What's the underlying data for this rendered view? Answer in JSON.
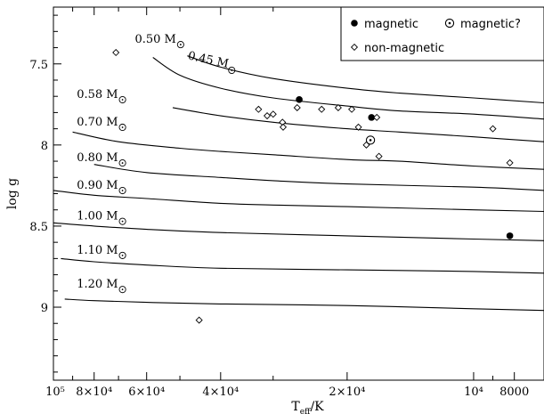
{
  "chart_data": {
    "type": "scatter",
    "xlabel": "T",
    "xlabel_sub": "eff",
    "xlabel_unit": "/K",
    "ylabel": "log g",
    "x_scale": "log",
    "x_reversed": true,
    "xlim": [
      100000,
      6800
    ],
    "ylim": [
      7.15,
      9.45
    ],
    "y_reversed": true,
    "x_ticks": [
      {
        "value": 100000,
        "label": "10⁵"
      },
      {
        "value": 80000,
        "label": "8×10⁴"
      },
      {
        "value": 60000,
        "label": "6×10⁴"
      },
      {
        "value": 40000,
        "label": "4×10⁴"
      },
      {
        "value": 20000,
        "label": "2×10⁴"
      },
      {
        "value": 10000,
        "label": "10⁴"
      },
      {
        "value": 8000,
        "label": "8000"
      }
    ],
    "x_minor_ticks": [
      90000,
      70000,
      50000,
      30000,
      9000
    ],
    "y_ticks": [
      {
        "value": 7.5,
        "label": "7.5"
      },
      {
        "value": 8,
        "label": "8"
      },
      {
        "value": 8.5,
        "label": "8.5"
      },
      {
        "value": 9,
        "label": "9"
      }
    ],
    "y_minor_step": 0.1,
    "legend": {
      "position": "top-right",
      "entries": [
        {
          "marker": "filled-circle",
          "label": "magnetic"
        },
        {
          "marker": "circle-dot",
          "label": "magnetic?"
        },
        {
          "marker": "open-diamond",
          "label": "non-magnetic"
        }
      ]
    },
    "cooling_tracks": [
      {
        "mass": "0.45 M",
        "label_text": "0.45 M",
        "label_anchor": {
          "x": 48000,
          "y": 7.47
        },
        "label_rotate": 12,
        "points": [
          [
            48000,
            7.45
          ],
          [
            40000,
            7.52
          ],
          [
            30000,
            7.59
          ],
          [
            20000,
            7.65
          ],
          [
            15000,
            7.68
          ],
          [
            10000,
            7.71
          ],
          [
            6800,
            7.74
          ]
        ]
      },
      {
        "mass": "0.50 M",
        "label_text": "0.50 M",
        "label_anchor": {
          "x": 64000,
          "y": 7.37
        },
        "points": [
          [
            58000,
            7.46
          ],
          [
            50000,
            7.57
          ],
          [
            40000,
            7.65
          ],
          [
            30000,
            7.71
          ],
          [
            20000,
            7.76
          ],
          [
            15000,
            7.79
          ],
          [
            10000,
            7.81
          ],
          [
            6800,
            7.84
          ]
        ]
      },
      {
        "mass": "0.58 M",
        "label_text": "0.58 M",
        "label_anchor": {
          "x": 88000,
          "y": 7.71
        },
        "points": [
          [
            52000,
            7.77
          ],
          [
            40000,
            7.82
          ],
          [
            30000,
            7.86
          ],
          [
            20000,
            7.9
          ],
          [
            15000,
            7.92
          ],
          [
            10000,
            7.95
          ],
          [
            6800,
            7.98
          ]
        ]
      },
      {
        "mass": "0.70 M",
        "label_text": "0.70 M",
        "label_anchor": {
          "x": 88000,
          "y": 7.88
        },
        "points": [
          [
            90000,
            7.92
          ],
          [
            70000,
            7.98
          ],
          [
            50000,
            8.02
          ],
          [
            40000,
            8.04
          ],
          [
            30000,
            8.06
          ],
          [
            20000,
            8.09
          ],
          [
            15000,
            8.1
          ],
          [
            10000,
            8.13
          ],
          [
            6800,
            8.15
          ]
        ]
      },
      {
        "mass": "0.80 M",
        "label_text": "0.80 M",
        "label_anchor": {
          "x": 88000,
          "y": 8.1
        },
        "points": [
          [
            80000,
            8.12
          ],
          [
            60000,
            8.17
          ],
          [
            40000,
            8.2
          ],
          [
            30000,
            8.22
          ],
          [
            20000,
            8.24
          ],
          [
            10000,
            8.26
          ],
          [
            6800,
            8.28
          ]
        ]
      },
      {
        "mass": "0.90 M",
        "label_text": "0.90 M",
        "label_anchor": {
          "x": 88000,
          "y": 8.27
        },
        "points": [
          [
            100000,
            8.28
          ],
          [
            80000,
            8.31
          ],
          [
            60000,
            8.33
          ],
          [
            40000,
            8.36
          ],
          [
            30000,
            8.37
          ],
          [
            20000,
            8.38
          ],
          [
            10000,
            8.4
          ],
          [
            6800,
            8.41
          ]
        ]
      },
      {
        "mass": "1.00 M",
        "label_text": "1.00 M",
        "label_anchor": {
          "x": 88000,
          "y": 8.46
        },
        "points": [
          [
            100000,
            8.48
          ],
          [
            80000,
            8.5
          ],
          [
            60000,
            8.52
          ],
          [
            40000,
            8.54
          ],
          [
            20000,
            8.56
          ],
          [
            10000,
            8.58
          ],
          [
            6800,
            8.59
          ]
        ]
      },
      {
        "mass": "1.10 M",
        "label_text": "1.10 M",
        "label_anchor": {
          "x": 88000,
          "y": 8.67
        },
        "points": [
          [
            96000,
            8.7
          ],
          [
            80000,
            8.72
          ],
          [
            60000,
            8.74
          ],
          [
            40000,
            8.76
          ],
          [
            20000,
            8.77
          ],
          [
            10000,
            8.78
          ],
          [
            6800,
            8.79
          ]
        ]
      },
      {
        "mass": "1.20 M",
        "label_text": "1.20 M",
        "label_anchor": {
          "x": 88000,
          "y": 8.88
        },
        "points": [
          [
            94000,
            8.95
          ],
          [
            80000,
            8.96
          ],
          [
            60000,
            8.97
          ],
          [
            40000,
            8.98
          ],
          [
            20000,
            8.99
          ],
          [
            10000,
            9.01
          ],
          [
            6800,
            9.02
          ]
        ]
      }
    ],
    "series": [
      {
        "name": "magnetic",
        "marker": "filled-circle",
        "points": [
          [
            26000,
            7.72
          ],
          [
            17500,
            7.83
          ],
          [
            8200,
            8.56
          ]
        ]
      },
      {
        "name": "magnetic?",
        "marker": "circle-dot",
        "points": [
          [
            17600,
            7.97
          ]
        ]
      },
      {
        "name": "non-magnetic",
        "marker": "open-diamond",
        "points": [
          [
            71000,
            7.43
          ],
          [
            32500,
            7.78
          ],
          [
            31000,
            7.82
          ],
          [
            30000,
            7.81
          ],
          [
            28500,
            7.86
          ],
          [
            28400,
            7.89
          ],
          [
            26300,
            7.77
          ],
          [
            23000,
            7.78
          ],
          [
            21000,
            7.77
          ],
          [
            19500,
            7.78
          ],
          [
            18800,
            7.89
          ],
          [
            18000,
            8.0
          ],
          [
            17000,
            7.83
          ],
          [
            16800,
            8.07
          ],
          [
            9000,
            7.9
          ],
          [
            8200,
            8.11
          ],
          [
            45000,
            9.08
          ]
        ]
      }
    ]
  }
}
